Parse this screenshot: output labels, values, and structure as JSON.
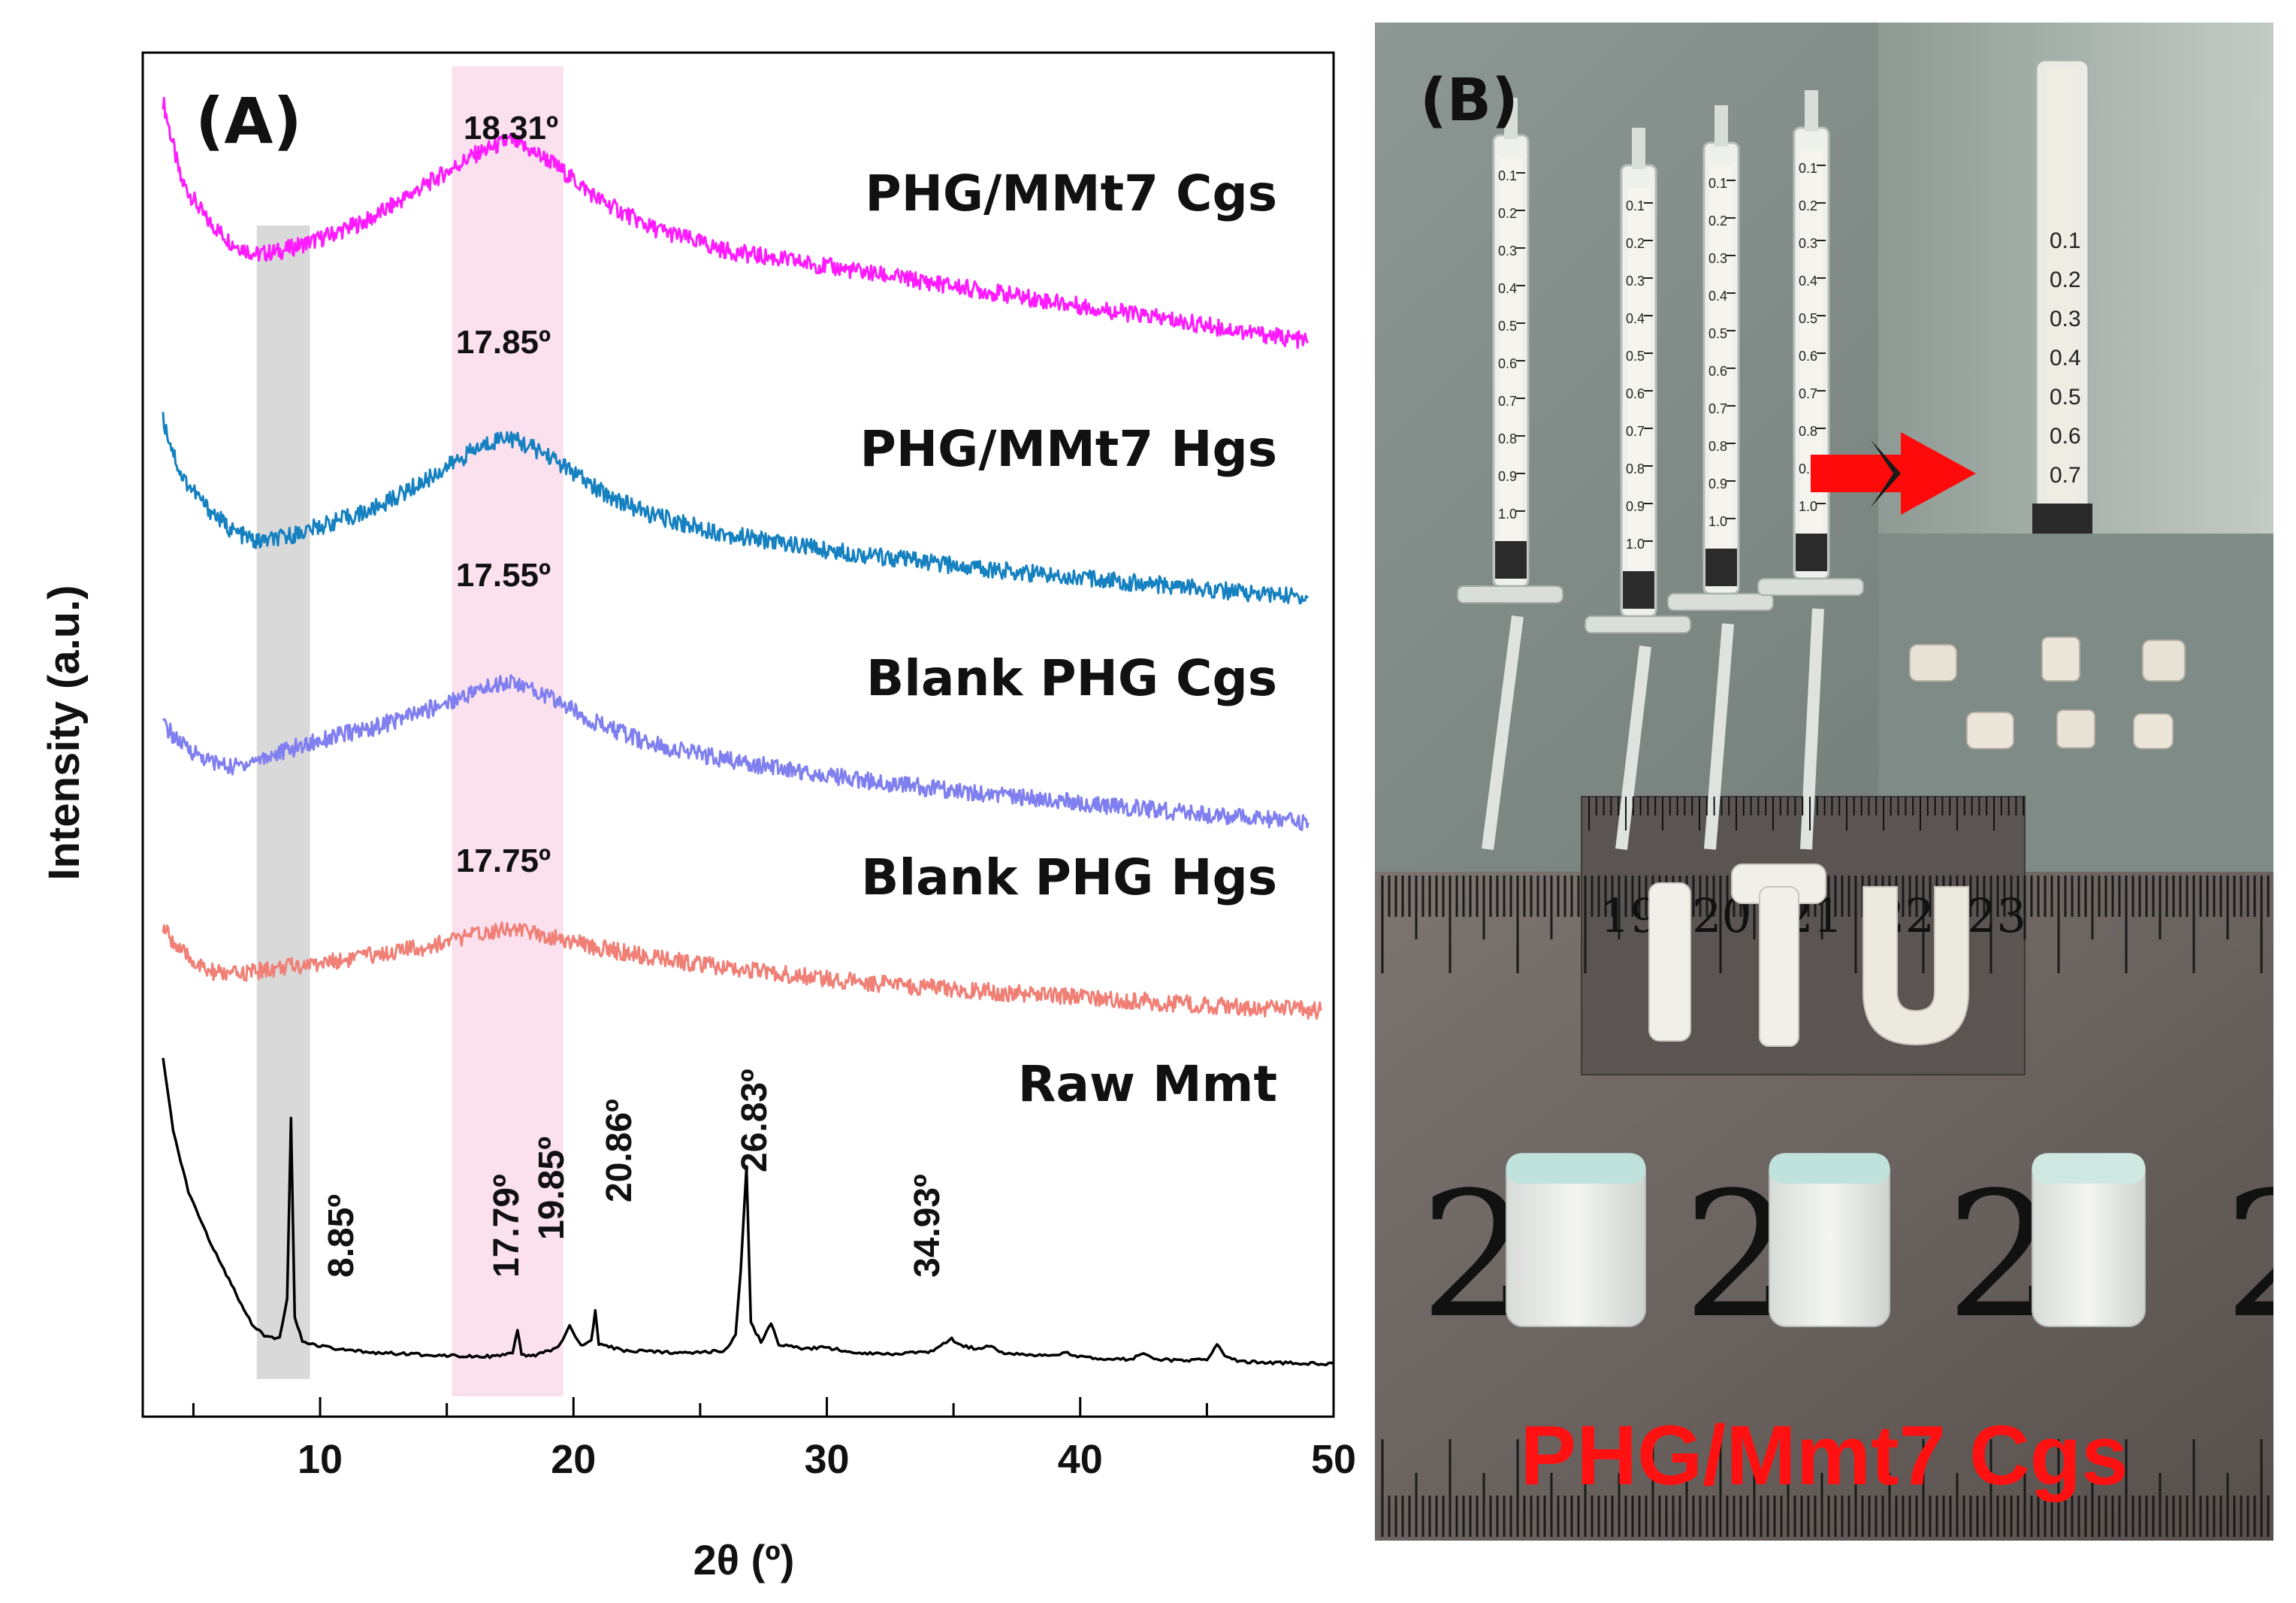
{
  "chart_data": {
    "type": "line",
    "panel_label": "(A)",
    "xlabel": "2θ (º)",
    "ylabel": "Intensity (a.u.)",
    "xlim": [
      3,
      50
    ],
    "xticks": [
      10,
      20,
      30,
      40,
      50
    ],
    "highlight_bands": [
      {
        "name": "grey",
        "x_range": [
          7.5,
          9.6
        ],
        "color": "#d9d9d9"
      },
      {
        "name": "pink",
        "x_range": [
          15.2,
          19.6
        ],
        "color": "#fbe0ee"
      }
    ],
    "series": [
      {
        "name": "PHG/MMt7 Cgs",
        "color": "#ff1aff",
        "peak_label": "18.31º",
        "points": [
          [
            3.8,
            3.2
          ],
          [
            4.5,
            2.2
          ],
          [
            5.5,
            1.7
          ],
          [
            6.5,
            1.4
          ],
          [
            7.5,
            1.25
          ],
          [
            8.5,
            1.3
          ],
          [
            10,
            1.45
          ],
          [
            12,
            1.7
          ],
          [
            14,
            2.1
          ],
          [
            16,
            2.5
          ],
          [
            17.5,
            2.7
          ],
          [
            19,
            2.45
          ],
          [
            21,
            1.95
          ],
          [
            23,
            1.6
          ],
          [
            26,
            1.3
          ],
          [
            30,
            1.1
          ],
          [
            35,
            0.85
          ],
          [
            40,
            0.6
          ],
          [
            45,
            0.35
          ],
          [
            49,
            0.15
          ]
        ]
      },
      {
        "name": "PHG/MMt7 Hgs",
        "color": "#1681c0",
        "peak_label": "17.85º",
        "points": [
          [
            3.8,
            2.3
          ],
          [
            4.5,
            1.6
          ],
          [
            5.5,
            1.2
          ],
          [
            6.5,
            0.9
          ],
          [
            7.5,
            0.75
          ],
          [
            8.5,
            0.8
          ],
          [
            10,
            0.95
          ],
          [
            12,
            1.15
          ],
          [
            14,
            1.5
          ],
          [
            16,
            1.9
          ],
          [
            17.3,
            2.1
          ],
          [
            19,
            1.85
          ],
          [
            21,
            1.4
          ],
          [
            23,
            1.1
          ],
          [
            26,
            0.85
          ],
          [
            30,
            0.65
          ],
          [
            35,
            0.45
          ],
          [
            40,
            0.3
          ],
          [
            45,
            0.15
          ],
          [
            49,
            0.05
          ]
        ]
      },
      {
        "name": "Blank PHG Cgs",
        "color": "#7f7ff0",
        "peak_label": "17.55º",
        "points": [
          [
            3.8,
            1.3
          ],
          [
            4.5,
            1.05
          ],
          [
            5.5,
            0.85
          ],
          [
            6.5,
            0.75
          ],
          [
            7.5,
            0.85
          ],
          [
            8.5,
            0.95
          ],
          [
            10,
            1.1
          ],
          [
            12,
            1.25
          ],
          [
            14,
            1.45
          ],
          [
            16,
            1.7
          ],
          [
            17.4,
            1.85
          ],
          [
            19,
            1.65
          ],
          [
            21,
            1.3
          ],
          [
            23,
            1.05
          ],
          [
            26,
            0.85
          ],
          [
            30,
            0.65
          ],
          [
            35,
            0.45
          ],
          [
            40,
            0.3
          ],
          [
            45,
            0.15
          ],
          [
            49,
            0.05
          ]
        ]
      },
      {
        "name": "Blank PHG Hgs",
        "color": "#f07f76",
        "peak_label": "17.75º",
        "points": [
          [
            3.8,
            1.1
          ],
          [
            4.5,
            0.8
          ],
          [
            5.5,
            0.55
          ],
          [
            6.5,
            0.5
          ],
          [
            7.5,
            0.55
          ],
          [
            8.5,
            0.6
          ],
          [
            10,
            0.65
          ],
          [
            12,
            0.75
          ],
          [
            14,
            0.85
          ],
          [
            16,
            1.0
          ],
          [
            17.3,
            1.1
          ],
          [
            19,
            1.0
          ],
          [
            21,
            0.85
          ],
          [
            23,
            0.72
          ],
          [
            26,
            0.6
          ],
          [
            30,
            0.45
          ],
          [
            35,
            0.32
          ],
          [
            40,
            0.22
          ],
          [
            45,
            0.12
          ],
          [
            49.5,
            0.05
          ]
        ]
      },
      {
        "name": "Raw Mmt",
        "color": "#000000",
        "peak_labels": [
          "8.85º",
          "17.79º",
          "19.85º",
          "20.86º",
          "26.83º",
          "34.93º"
        ],
        "points": [
          [
            3.8,
            5.2
          ],
          [
            4.2,
            4.0
          ],
          [
            4.8,
            3.0
          ],
          [
            5.5,
            2.3
          ],
          [
            6.2,
            1.7
          ],
          [
            6.8,
            1.2
          ],
          [
            7.3,
            0.8
          ],
          [
            7.8,
            0.6
          ],
          [
            8.4,
            0.55
          ],
          [
            8.7,
            1.2
          ],
          [
            8.85,
            4.2
          ],
          [
            9.0,
            0.9
          ],
          [
            9.3,
            0.5
          ],
          [
            10,
            0.42
          ],
          [
            11,
            0.35
          ],
          [
            12,
            0.32
          ],
          [
            13,
            0.3
          ],
          [
            14,
            0.28
          ],
          [
            15,
            0.27
          ],
          [
            16,
            0.26
          ],
          [
            17,
            0.25
          ],
          [
            17.6,
            0.3
          ],
          [
            17.79,
            0.7
          ],
          [
            17.95,
            0.26
          ],
          [
            18.5,
            0.27
          ],
          [
            19.4,
            0.4
          ],
          [
            19.85,
            0.75
          ],
          [
            20.3,
            0.42
          ],
          [
            20.7,
            0.5
          ],
          [
            20.86,
            1.0
          ],
          [
            21.0,
            0.45
          ],
          [
            22,
            0.35
          ],
          [
            23,
            0.33
          ],
          [
            24,
            0.32
          ],
          [
            25,
            0.32
          ],
          [
            26,
            0.35
          ],
          [
            26.4,
            0.6
          ],
          [
            26.6,
            1.7
          ],
          [
            26.83,
            3.4
          ],
          [
            27.0,
            0.8
          ],
          [
            27.4,
            0.5
          ],
          [
            27.8,
            0.8
          ],
          [
            28.1,
            0.45
          ],
          [
            29,
            0.38
          ],
          [
            30,
            0.4
          ],
          [
            31,
            0.32
          ],
          [
            32,
            0.3
          ],
          [
            33,
            0.3
          ],
          [
            34,
            0.32
          ],
          [
            34.6,
            0.45
          ],
          [
            34.93,
            0.55
          ],
          [
            35.3,
            0.42
          ],
          [
            36,
            0.38
          ],
          [
            36.5,
            0.42
          ],
          [
            37,
            0.3
          ],
          [
            38,
            0.27
          ],
          [
            39.5,
            0.3
          ],
          [
            40,
            0.24
          ],
          [
            41,
            0.22
          ],
          [
            42,
            0.2
          ],
          [
            42.5,
            0.3
          ],
          [
            43,
            0.2
          ],
          [
            44,
            0.18
          ],
          [
            45,
            0.2
          ],
          [
            45.4,
            0.45
          ],
          [
            45.8,
            0.22
          ],
          [
            46.5,
            0.16
          ],
          [
            48,
            0.14
          ],
          [
            50,
            0.13
          ]
        ]
      }
    ]
  },
  "photo_panel": {
    "panel_label": "(B)",
    "caption": "PHG/Mmt7 Cgs",
    "syringe_scale": [
      "0.1",
      "0.2",
      "0.3",
      "0.4",
      "0.5",
      "0.6",
      "0.7",
      "0.8",
      "0.9",
      "1.0"
    ],
    "inset_syringe_scale": [
      "0.1",
      "0.2",
      "0.3",
      "0.4",
      "0.5",
      "0.6",
      "0.7"
    ],
    "ruler_inset_numbers": [
      "19",
      "20",
      "21",
      "22",
      "23"
    ],
    "ruler_large_digits": [
      "2",
      "2",
      "2",
      "2"
    ],
    "shape_letters": [
      "I",
      "T",
      "U"
    ]
  }
}
